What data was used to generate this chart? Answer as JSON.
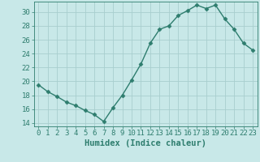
{
  "x": [
    0,
    1,
    2,
    3,
    4,
    5,
    6,
    7,
    8,
    9,
    10,
    11,
    12,
    13,
    14,
    15,
    16,
    17,
    18,
    19,
    20,
    21,
    22,
    23
  ],
  "y": [
    19.5,
    18.5,
    17.8,
    17.0,
    16.5,
    15.8,
    15.2,
    14.2,
    16.2,
    18.0,
    20.2,
    22.5,
    25.5,
    27.5,
    28.0,
    29.5,
    30.2,
    31.0,
    30.5,
    31.0,
    29.0,
    27.5,
    25.5,
    24.5
  ],
  "line_color": "#2e7d6e",
  "marker": "D",
  "markersize": 2.5,
  "linewidth": 1.0,
  "bg_color": "#c8e8e8",
  "grid_color": "#a8cece",
  "axis_color": "#2e7d6e",
  "xlabel": "Humidex (Indice chaleur)",
  "xlim": [
    -0.5,
    23.5
  ],
  "ylim": [
    13.5,
    31.5
  ],
  "yticks": [
    14,
    16,
    18,
    20,
    22,
    24,
    26,
    28,
    30
  ],
  "xtick_labels": [
    "0",
    "1",
    "2",
    "3",
    "4",
    "5",
    "6",
    "7",
    "8",
    "9",
    "10",
    "11",
    "12",
    "13",
    "14",
    "15",
    "16",
    "17",
    "18",
    "19",
    "20",
    "21",
    "22",
    "23"
  ],
  "fontsize_ticks": 6.5,
  "fontsize_xlabel": 7.5
}
